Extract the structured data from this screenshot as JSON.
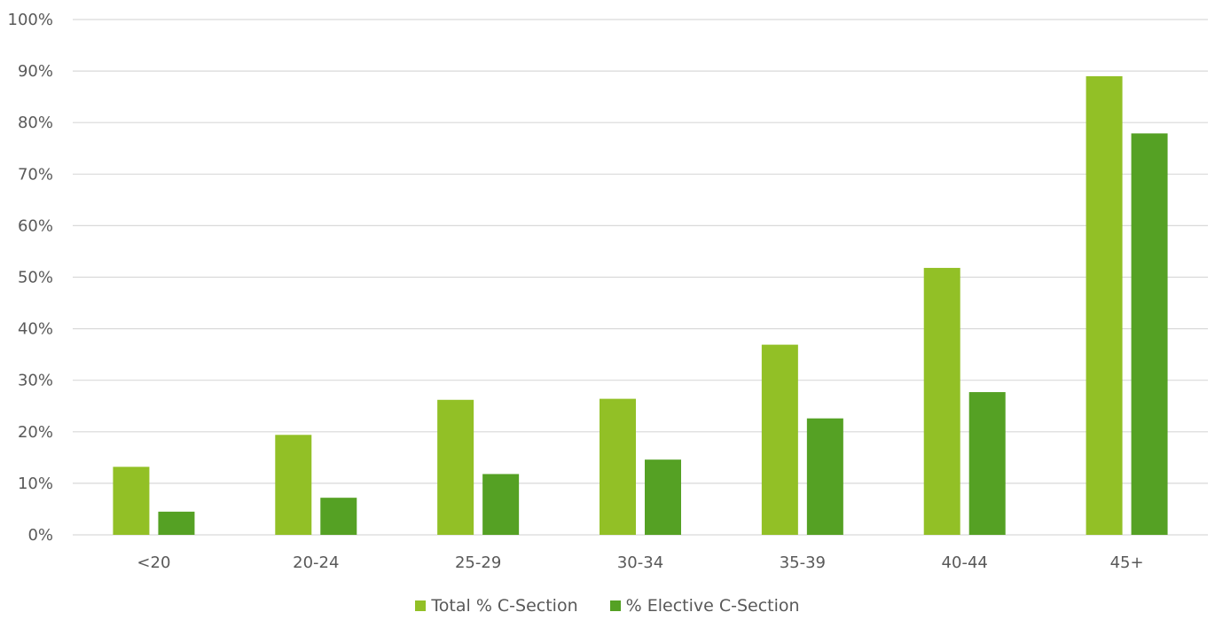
{
  "chart_data": {
    "type": "bar",
    "categories": [
      "<20",
      "20-24",
      "25-29",
      "30-34",
      "35-39",
      "40-44",
      "45+"
    ],
    "series": [
      {
        "name": "Total % C-Section",
        "color": "#92c026",
        "values": [
          13.2,
          19.4,
          26.2,
          26.4,
          36.9,
          51.8,
          89.0
        ]
      },
      {
        "name": "% Elective C-Section",
        "color": "#55a124",
        "values": [
          4.5,
          7.2,
          11.8,
          14.6,
          22.6,
          27.7,
          77.9
        ]
      }
    ],
    "yticks": [
      "0%",
      "10%",
      "20%",
      "30%",
      "40%",
      "50%",
      "60%",
      "70%",
      "80%",
      "90%",
      "100%"
    ],
    "ylim": [
      0,
      100
    ],
    "grid": true,
    "legend_position": "bottom"
  }
}
